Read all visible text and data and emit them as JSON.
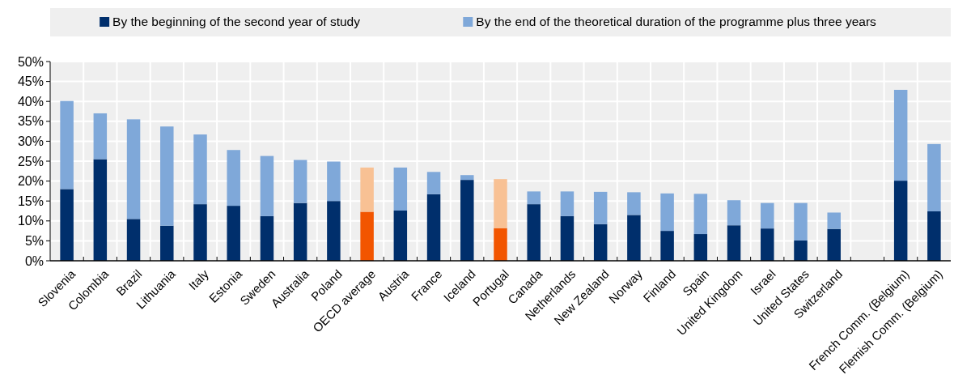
{
  "chart_data": {
    "type": "bar",
    "stacked": true,
    "legend": "top",
    "grid": true,
    "categories": [
      "Slovenia",
      "Colombia",
      "Brazil",
      "Lithuania",
      "Italy",
      "Estonia",
      "Sweden",
      "Australia",
      "Poland",
      "OECD average",
      "Austria",
      "France",
      "Iceland",
      "Portugal",
      "Canada",
      "Netherlands",
      "New Zealand",
      "Norway",
      "Finland",
      "Spain",
      "United Kingdom",
      "Israel",
      "United States",
      "Switzerland",
      null,
      "French Comm. (Belgium)",
      "Flemish Comm. (Belgium)"
    ],
    "series": [
      {
        "name": "By the beginning of the second year of study",
        "color": "#002f6c",
        "colors": [
          "#002f6c",
          "#002f6c",
          "#002f6c",
          "#002f6c",
          "#002f6c",
          "#002f6c",
          "#002f6c",
          "#002f6c",
          "#002f6c",
          "#f25500",
          "#002f6c",
          "#002f6c",
          "#002f6c",
          "#f25500",
          "#002f6c",
          "#002f6c",
          "#002f6c",
          "#002f6c",
          "#002f6c",
          "#002f6c",
          "#002f6c",
          "#002f6c",
          "#002f6c",
          "#002f6c",
          null,
          "#002f6c",
          "#002f6c"
        ],
        "values": [
          18,
          25.5,
          10.5,
          8.8,
          14.2,
          13.8,
          11.2,
          14.5,
          15,
          12.3,
          12.6,
          16.7,
          20.3,
          8.2,
          14.2,
          11.2,
          9.2,
          11.5,
          7.5,
          6.7,
          8.9,
          8.1,
          5.1,
          8,
          null,
          20.1,
          12.4
        ]
      },
      {
        "name": "By the end of the theoretical duration of the programme plus three years",
        "color": "#7fa8d9",
        "colors": [
          "#7fa8d9",
          "#7fa8d9",
          "#7fa8d9",
          "#7fa8d9",
          "#7fa8d9",
          "#7fa8d9",
          "#7fa8d9",
          "#7fa8d9",
          "#7fa8d9",
          "#f8c194",
          "#7fa8d9",
          "#7fa8d9",
          "#7fa8d9",
          "#f8c194",
          "#7fa8d9",
          "#7fa8d9",
          "#7fa8d9",
          "#7fa8d9",
          "#7fa8d9",
          "#7fa8d9",
          "#7fa8d9",
          "#7fa8d9",
          "#7fa8d9",
          "#7fa8d9",
          null,
          "#7fa8d9",
          "#7fa8d9"
        ],
        "values": [
          22.1,
          11.5,
          25,
          24.9,
          17.5,
          14,
          15.1,
          10.8,
          9.9,
          11.1,
          10.8,
          5.6,
          1.2,
          12.3,
          3.2,
          6.2,
          8.1,
          5.7,
          9.4,
          10.1,
          6.3,
          6.4,
          9.4,
          4.1,
          null,
          22.8,
          16.9
        ]
      }
    ],
    "ylim": [
      0,
      50
    ],
    "yticks": [
      {
        "value": 0,
        "label": "0%"
      },
      {
        "value": 5,
        "label": "5%"
      },
      {
        "value": 10,
        "label": "10%"
      },
      {
        "value": 15,
        "label": "15%"
      },
      {
        "value": 20,
        "label": "20%"
      },
      {
        "value": 25,
        "label": "25%"
      },
      {
        "value": 30,
        "label": "30%"
      },
      {
        "value": 35,
        "label": "35%"
      },
      {
        "value": 40,
        "label": "40%"
      },
      {
        "value": 45,
        "label": "45%"
      },
      {
        "value": 50,
        "label": "50%"
      }
    ]
  }
}
